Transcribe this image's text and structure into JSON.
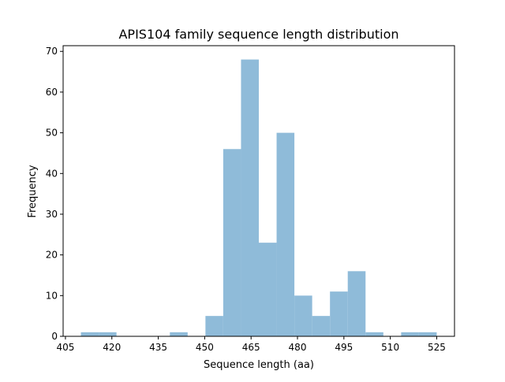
{
  "chart_data": {
    "type": "bar",
    "subtype": "histogram",
    "title": "APIS104 family sequence length distribution",
    "xlabel": "Sequence length (aa)",
    "ylabel": "Frequency",
    "bin_edges": [
      410,
      415.75,
      421.5,
      427.25,
      433,
      438.75,
      444.5,
      450.25,
      456,
      461.75,
      467.5,
      473.25,
      479,
      484.75,
      490.5,
      496.25,
      502,
      507.75,
      513.5,
      519.25,
      525
    ],
    "values": [
      1,
      1,
      0,
      0,
      0,
      1,
      0,
      5,
      46,
      68,
      23,
      50,
      10,
      5,
      11,
      16,
      1,
      0,
      1,
      1
    ],
    "xlim": [
      404.25,
      530.75
    ],
    "ylim": [
      0,
      71.4
    ],
    "xticks": [
      405,
      420,
      435,
      450,
      465,
      480,
      495,
      510,
      525
    ],
    "yticks": [
      0,
      10,
      20,
      30,
      40,
      50,
      60,
      70
    ],
    "grid": false,
    "bar_color": "#8fbbd9"
  }
}
